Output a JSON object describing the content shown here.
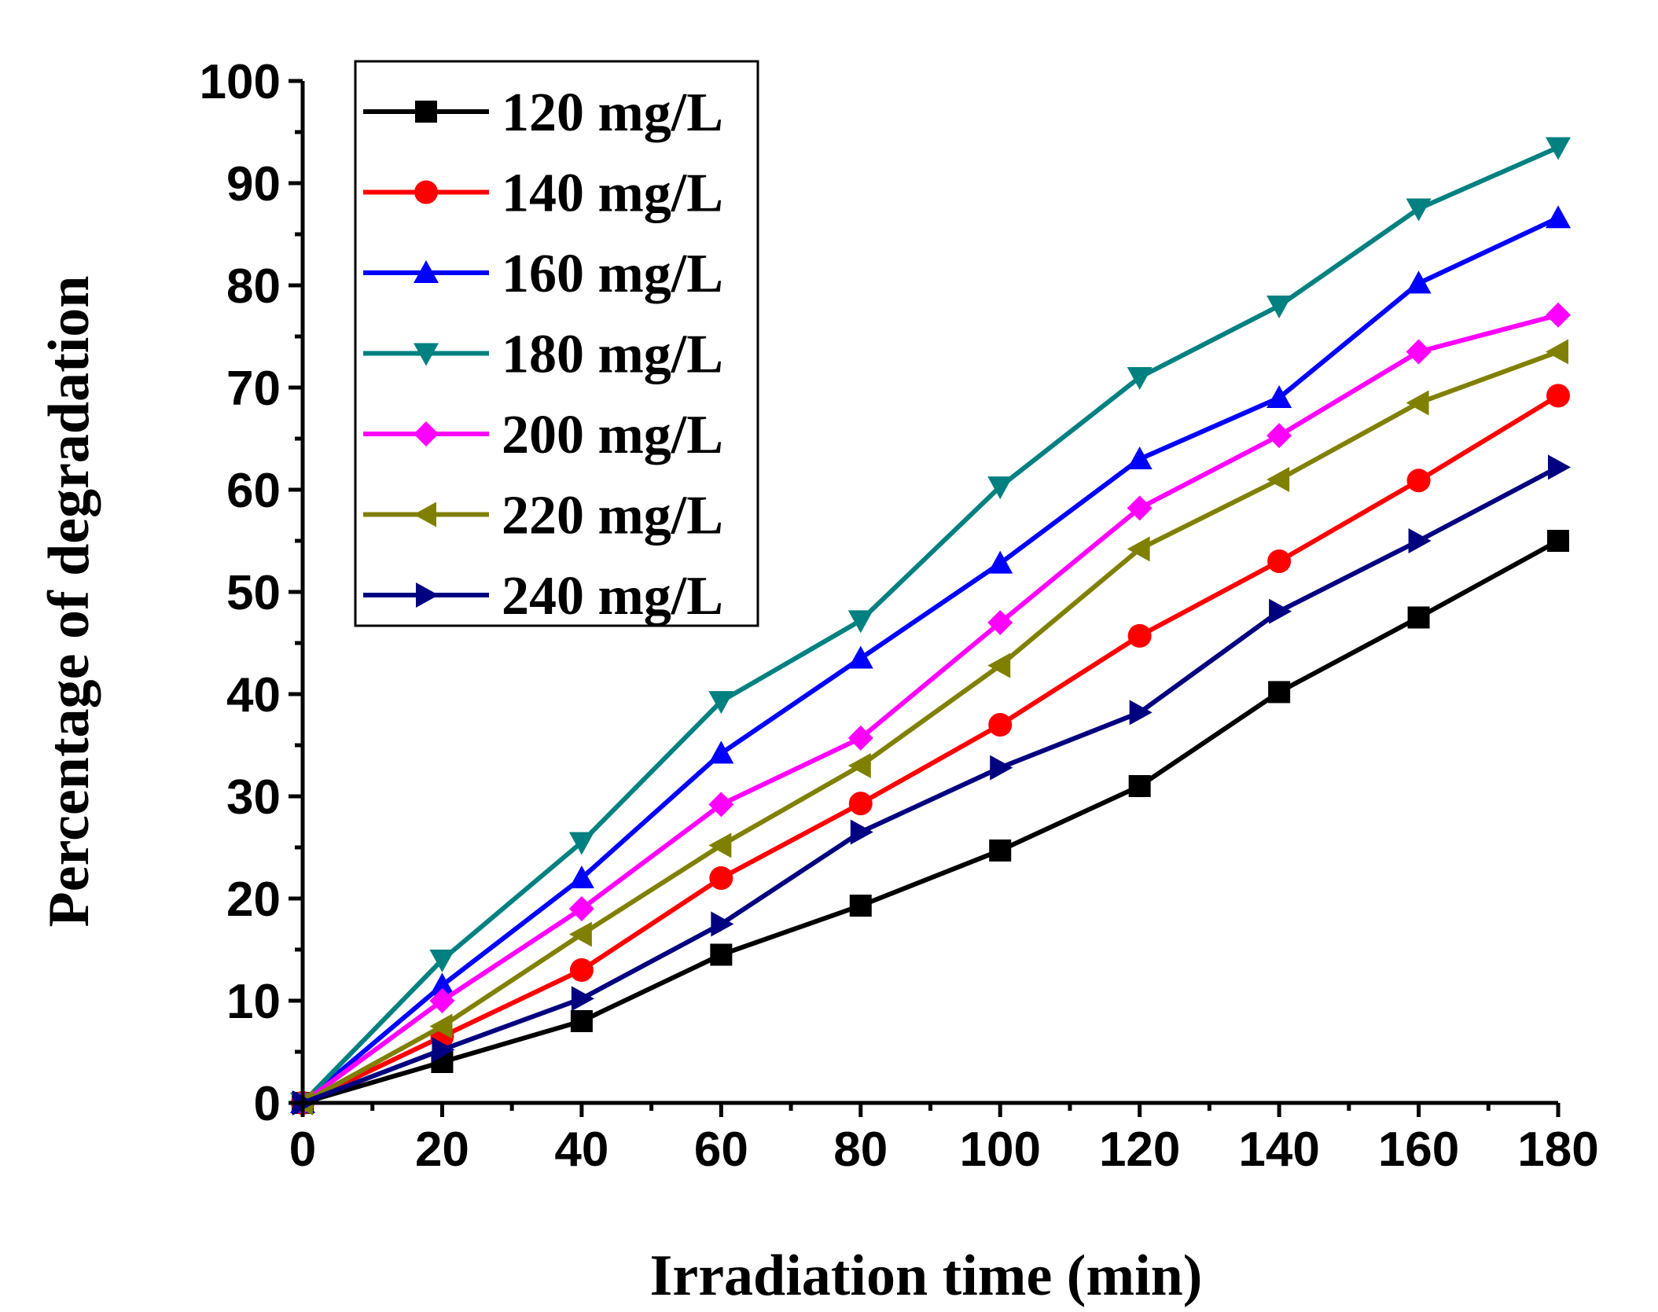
{
  "chart_data": {
    "type": "line",
    "title": "",
    "xlabel": "Irradiation time (min)",
    "ylabel": "Percentage of degradation",
    "x": [
      0,
      20,
      40,
      60,
      80,
      100,
      120,
      140,
      160,
      180
    ],
    "xlim": [
      0,
      180
    ],
    "ylim": [
      0,
      100
    ],
    "xticks": [
      "0",
      "20",
      "40",
      "60",
      "80",
      "100",
      "120",
      "140",
      "160",
      "180"
    ],
    "yticks": [
      "0",
      "10",
      "20",
      "30",
      "40",
      "50",
      "60",
      "70",
      "80",
      "90",
      "100"
    ],
    "grid": false,
    "legend_position": "top-left",
    "series": [
      {
        "name": "120 mg/L",
        "color": "#000000",
        "marker": "square",
        "values": [
          0,
          4,
          8,
          14.5,
          19.3,
          24.7,
          31,
          40.2,
          47.5,
          55
        ]
      },
      {
        "name": "140 mg/L",
        "color": "#ff0000",
        "marker": "circle",
        "values": [
          0,
          6.5,
          13,
          22,
          29.3,
          37,
          45.7,
          53,
          60.9,
          69.2
        ]
      },
      {
        "name": "160 mg/L",
        "color": "#0000ff",
        "marker": "triangle-up",
        "values": [
          0,
          11.5,
          22,
          34.2,
          43.5,
          52.8,
          63,
          69,
          80.2,
          86.6
        ]
      },
      {
        "name": "180 mg/L",
        "color": "#008080",
        "marker": "triangle-down",
        "values": [
          0,
          14,
          25.5,
          39.3,
          47.2,
          60.3,
          71,
          78,
          87.5,
          93.5
        ]
      },
      {
        "name": "200 mg/L",
        "color": "#ff00ff",
        "marker": "diamond",
        "values": [
          0,
          10,
          19,
          29.2,
          35.7,
          47,
          58.2,
          65.3,
          73.5,
          77.1
        ]
      },
      {
        "name": "220 mg/L",
        "color": "#808000",
        "marker": "triangle-left",
        "values": [
          0,
          7.5,
          16.5,
          25.2,
          33,
          42.8,
          54.2,
          61,
          68.5,
          73.5
        ]
      },
      {
        "name": "240 mg/L",
        "color": "#000080",
        "marker": "triangle-right",
        "values": [
          0,
          5.2,
          10.2,
          17.5,
          26.5,
          32.8,
          38.2,
          48.1,
          55,
          62.2
        ]
      }
    ]
  }
}
